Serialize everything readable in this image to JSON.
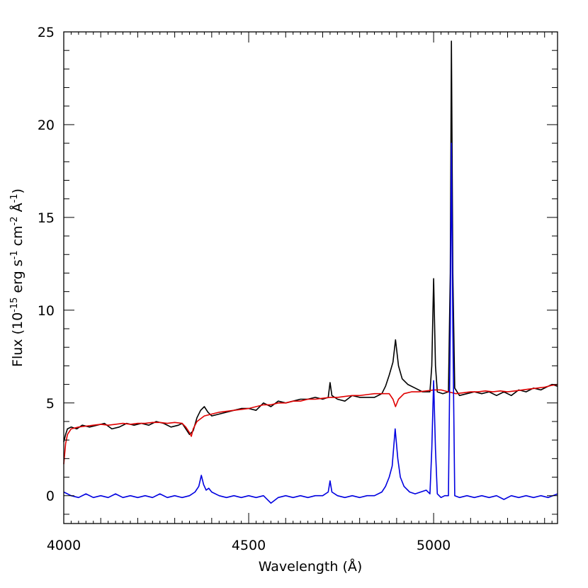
{
  "chart_data": {
    "type": "line",
    "title": "",
    "xlabel": "Wavelength (Å)",
    "ylabel_parts": {
      "a": "Flux (10",
      "b": "-15",
      "c": " erg s",
      "d": "-1",
      "e": " cm",
      "f": "-2",
      "g": " Å",
      "h": "-1",
      "i": ")"
    },
    "xlim": [
      4000,
      5335
    ],
    "ylim": [
      -1.5,
      25
    ],
    "x_ticks": [
      4000,
      4500,
      5000
    ],
    "x_tick_labels": [
      "4000",
      "4500",
      "5000"
    ],
    "y_ticks": [
      0,
      5,
      10,
      15,
      20,
      25
    ],
    "y_tick_labels": [
      "0",
      "5",
      "10",
      "15",
      "20",
      "25"
    ],
    "grid": false,
    "legend": "none",
    "series": [
      {
        "color": "#000000",
        "points": [
          [
            4000,
            2.9
          ],
          [
            4005,
            3.3
          ],
          [
            4010,
            3.6
          ],
          [
            4020,
            3.7
          ],
          [
            4035,
            3.6
          ],
          [
            4050,
            3.8
          ],
          [
            4070,
            3.7
          ],
          [
            4090,
            3.8
          ],
          [
            4110,
            3.9
          ],
          [
            4130,
            3.6
          ],
          [
            4150,
            3.7
          ],
          [
            4170,
            3.9
          ],
          [
            4190,
            3.8
          ],
          [
            4210,
            3.9
          ],
          [
            4230,
            3.8
          ],
          [
            4250,
            4.0
          ],
          [
            4270,
            3.9
          ],
          [
            4290,
            3.7
          ],
          [
            4310,
            3.8
          ],
          [
            4320,
            3.9
          ],
          [
            4330,
            3.6
          ],
          [
            4340,
            3.3
          ],
          [
            4350,
            3.5
          ],
          [
            4360,
            4.2
          ],
          [
            4370,
            4.6
          ],
          [
            4380,
            4.8
          ],
          [
            4390,
            4.5
          ],
          [
            4400,
            4.3
          ],
          [
            4420,
            4.4
          ],
          [
            4440,
            4.5
          ],
          [
            4460,
            4.6
          ],
          [
            4480,
            4.7
          ],
          [
            4500,
            4.7
          ],
          [
            4520,
            4.6
          ],
          [
            4540,
            5.0
          ],
          [
            4560,
            4.8
          ],
          [
            4580,
            5.1
          ],
          [
            4600,
            5.0
          ],
          [
            4620,
            5.1
          ],
          [
            4640,
            5.2
          ],
          [
            4660,
            5.2
          ],
          [
            4680,
            5.3
          ],
          [
            4700,
            5.2
          ],
          [
            4715,
            5.3
          ],
          [
            4720,
            6.1
          ],
          [
            4725,
            5.4
          ],
          [
            4740,
            5.2
          ],
          [
            4760,
            5.1
          ],
          [
            4780,
            5.4
          ],
          [
            4800,
            5.3
          ],
          [
            4820,
            5.3
          ],
          [
            4840,
            5.3
          ],
          [
            4860,
            5.5
          ],
          [
            4870,
            5.9
          ],
          [
            4880,
            6.5
          ],
          [
            4890,
            7.2
          ],
          [
            4897,
            8.4
          ],
          [
            4905,
            7.0
          ],
          [
            4915,
            6.3
          ],
          [
            4930,
            6.0
          ],
          [
            4950,
            5.8
          ],
          [
            4970,
            5.6
          ],
          [
            4990,
            5.6
          ],
          [
            4995,
            7.0
          ],
          [
            5000,
            11.7
          ],
          [
            5005,
            7.0
          ],
          [
            5010,
            5.6
          ],
          [
            5025,
            5.5
          ],
          [
            5040,
            5.6
          ],
          [
            5045,
            12.0
          ],
          [
            5048,
            24.5
          ],
          [
            5052,
            12.0
          ],
          [
            5057,
            5.8
          ],
          [
            5070,
            5.4
          ],
          [
            5090,
            5.5
          ],
          [
            5110,
            5.6
          ],
          [
            5130,
            5.5
          ],
          [
            5150,
            5.6
          ],
          [
            5170,
            5.4
          ],
          [
            5190,
            5.6
          ],
          [
            5210,
            5.4
          ],
          [
            5230,
            5.7
          ],
          [
            5250,
            5.6
          ],
          [
            5270,
            5.8
          ],
          [
            5290,
            5.7
          ],
          [
            5310,
            5.9
          ],
          [
            5320,
            6.0
          ],
          [
            5335,
            5.9
          ]
        ]
      },
      {
        "color": "#e00000",
        "points": [
          [
            4000,
            1.7
          ],
          [
            4005,
            2.8
          ],
          [
            4010,
            3.3
          ],
          [
            4020,
            3.6
          ],
          [
            4040,
            3.7
          ],
          [
            4060,
            3.75
          ],
          [
            4080,
            3.8
          ],
          [
            4100,
            3.85
          ],
          [
            4120,
            3.8
          ],
          [
            4140,
            3.85
          ],
          [
            4160,
            3.9
          ],
          [
            4180,
            3.85
          ],
          [
            4200,
            3.9
          ],
          [
            4220,
            3.9
          ],
          [
            4240,
            3.95
          ],
          [
            4260,
            3.95
          ],
          [
            4280,
            3.9
          ],
          [
            4300,
            3.95
          ],
          [
            4320,
            3.9
          ],
          [
            4330,
            3.7
          ],
          [
            4340,
            3.4
          ],
          [
            4345,
            3.2
          ],
          [
            4350,
            3.6
          ],
          [
            4360,
            4.0
          ],
          [
            4380,
            4.3
          ],
          [
            4400,
            4.4
          ],
          [
            4420,
            4.5
          ],
          [
            4440,
            4.55
          ],
          [
            4460,
            4.6
          ],
          [
            4480,
            4.65
          ],
          [
            4500,
            4.7
          ],
          [
            4520,
            4.8
          ],
          [
            4540,
            4.9
          ],
          [
            4560,
            4.9
          ],
          [
            4580,
            5.0
          ],
          [
            4600,
            5.0
          ],
          [
            4620,
            5.1
          ],
          [
            4640,
            5.1
          ],
          [
            4660,
            5.2
          ],
          [
            4680,
            5.2
          ],
          [
            4700,
            5.25
          ],
          [
            4720,
            5.3
          ],
          [
            4740,
            5.3
          ],
          [
            4760,
            5.35
          ],
          [
            4780,
            5.4
          ],
          [
            4800,
            5.4
          ],
          [
            4820,
            5.45
          ],
          [
            4840,
            5.5
          ],
          [
            4860,
            5.5
          ],
          [
            4880,
            5.5
          ],
          [
            4890,
            5.2
          ],
          [
            4897,
            4.8
          ],
          [
            4905,
            5.2
          ],
          [
            4920,
            5.5
          ],
          [
            4940,
            5.6
          ],
          [
            4960,
            5.6
          ],
          [
            4980,
            5.65
          ],
          [
            5000,
            5.7
          ],
          [
            5020,
            5.7
          ],
          [
            5040,
            5.6
          ],
          [
            5060,
            5.5
          ],
          [
            5080,
            5.55
          ],
          [
            5100,
            5.6
          ],
          [
            5120,
            5.6
          ],
          [
            5140,
            5.65
          ],
          [
            5160,
            5.6
          ],
          [
            5180,
            5.65
          ],
          [
            5200,
            5.6
          ],
          [
            5220,
            5.65
          ],
          [
            5240,
            5.7
          ],
          [
            5260,
            5.75
          ],
          [
            5280,
            5.8
          ],
          [
            5300,
            5.85
          ],
          [
            5320,
            5.95
          ],
          [
            5335,
            6.0
          ]
        ]
      },
      {
        "color": "#0000e0",
        "points": [
          [
            4000,
            0.2
          ],
          [
            4020,
            0.0
          ],
          [
            4040,
            -0.1
          ],
          [
            4060,
            0.1
          ],
          [
            4080,
            -0.1
          ],
          [
            4100,
            0.0
          ],
          [
            4120,
            -0.1
          ],
          [
            4140,
            0.1
          ],
          [
            4160,
            -0.1
          ],
          [
            4180,
            0.0
          ],
          [
            4200,
            -0.1
          ],
          [
            4220,
            0.0
          ],
          [
            4240,
            -0.1
          ],
          [
            4260,
            0.1
          ],
          [
            4280,
            -0.1
          ],
          [
            4300,
            0.0
          ],
          [
            4320,
            -0.1
          ],
          [
            4340,
            0.0
          ],
          [
            4355,
            0.2
          ],
          [
            4365,
            0.5
          ],
          [
            4372,
            1.1
          ],
          [
            4378,
            0.6
          ],
          [
            4385,
            0.3
          ],
          [
            4392,
            0.4
          ],
          [
            4400,
            0.2
          ],
          [
            4420,
            0.0
          ],
          [
            4440,
            -0.1
          ],
          [
            4460,
            0.0
          ],
          [
            4480,
            -0.1
          ],
          [
            4500,
            0.0
          ],
          [
            4520,
            -0.1
          ],
          [
            4540,
            0.0
          ],
          [
            4560,
            -0.4
          ],
          [
            4580,
            -0.1
          ],
          [
            4600,
            0.0
          ],
          [
            4620,
            -0.1
          ],
          [
            4640,
            0.0
          ],
          [
            4660,
            -0.1
          ],
          [
            4680,
            0.0
          ],
          [
            4700,
            0.0
          ],
          [
            4715,
            0.2
          ],
          [
            4720,
            0.8
          ],
          [
            4725,
            0.2
          ],
          [
            4740,
            0.0
          ],
          [
            4760,
            -0.1
          ],
          [
            4780,
            0.0
          ],
          [
            4800,
            -0.1
          ],
          [
            4820,
            0.0
          ],
          [
            4840,
            0.0
          ],
          [
            4860,
            0.2
          ],
          [
            4870,
            0.5
          ],
          [
            4880,
            1.0
          ],
          [
            4888,
            1.6
          ],
          [
            4896,
            3.6
          ],
          [
            4903,
            2.0
          ],
          [
            4910,
            1.0
          ],
          [
            4920,
            0.5
          ],
          [
            4935,
            0.2
          ],
          [
            4950,
            0.1
          ],
          [
            4965,
            0.2
          ],
          [
            4980,
            0.3
          ],
          [
            4990,
            0.1
          ],
          [
            4995,
            2.5
          ],
          [
            5000,
            6.2
          ],
          [
            5005,
            2.5
          ],
          [
            5010,
            0.1
          ],
          [
            5020,
            -0.1
          ],
          [
            5030,
            0.0
          ],
          [
            5040,
            0.0
          ],
          [
            5045,
            9.0
          ],
          [
            5048,
            19.0
          ],
          [
            5052,
            9.0
          ],
          [
            5057,
            0.0
          ],
          [
            5070,
            -0.1
          ],
          [
            5090,
            0.0
          ],
          [
            5110,
            -0.1
          ],
          [
            5130,
            0.0
          ],
          [
            5150,
            -0.1
          ],
          [
            5170,
            0.0
          ],
          [
            5190,
            -0.2
          ],
          [
            5210,
            0.0
          ],
          [
            5230,
            -0.1
          ],
          [
            5250,
            0.0
          ],
          [
            5270,
            -0.1
          ],
          [
            5290,
            0.0
          ],
          [
            5310,
            -0.1
          ],
          [
            5335,
            0.1
          ]
        ]
      }
    ]
  }
}
